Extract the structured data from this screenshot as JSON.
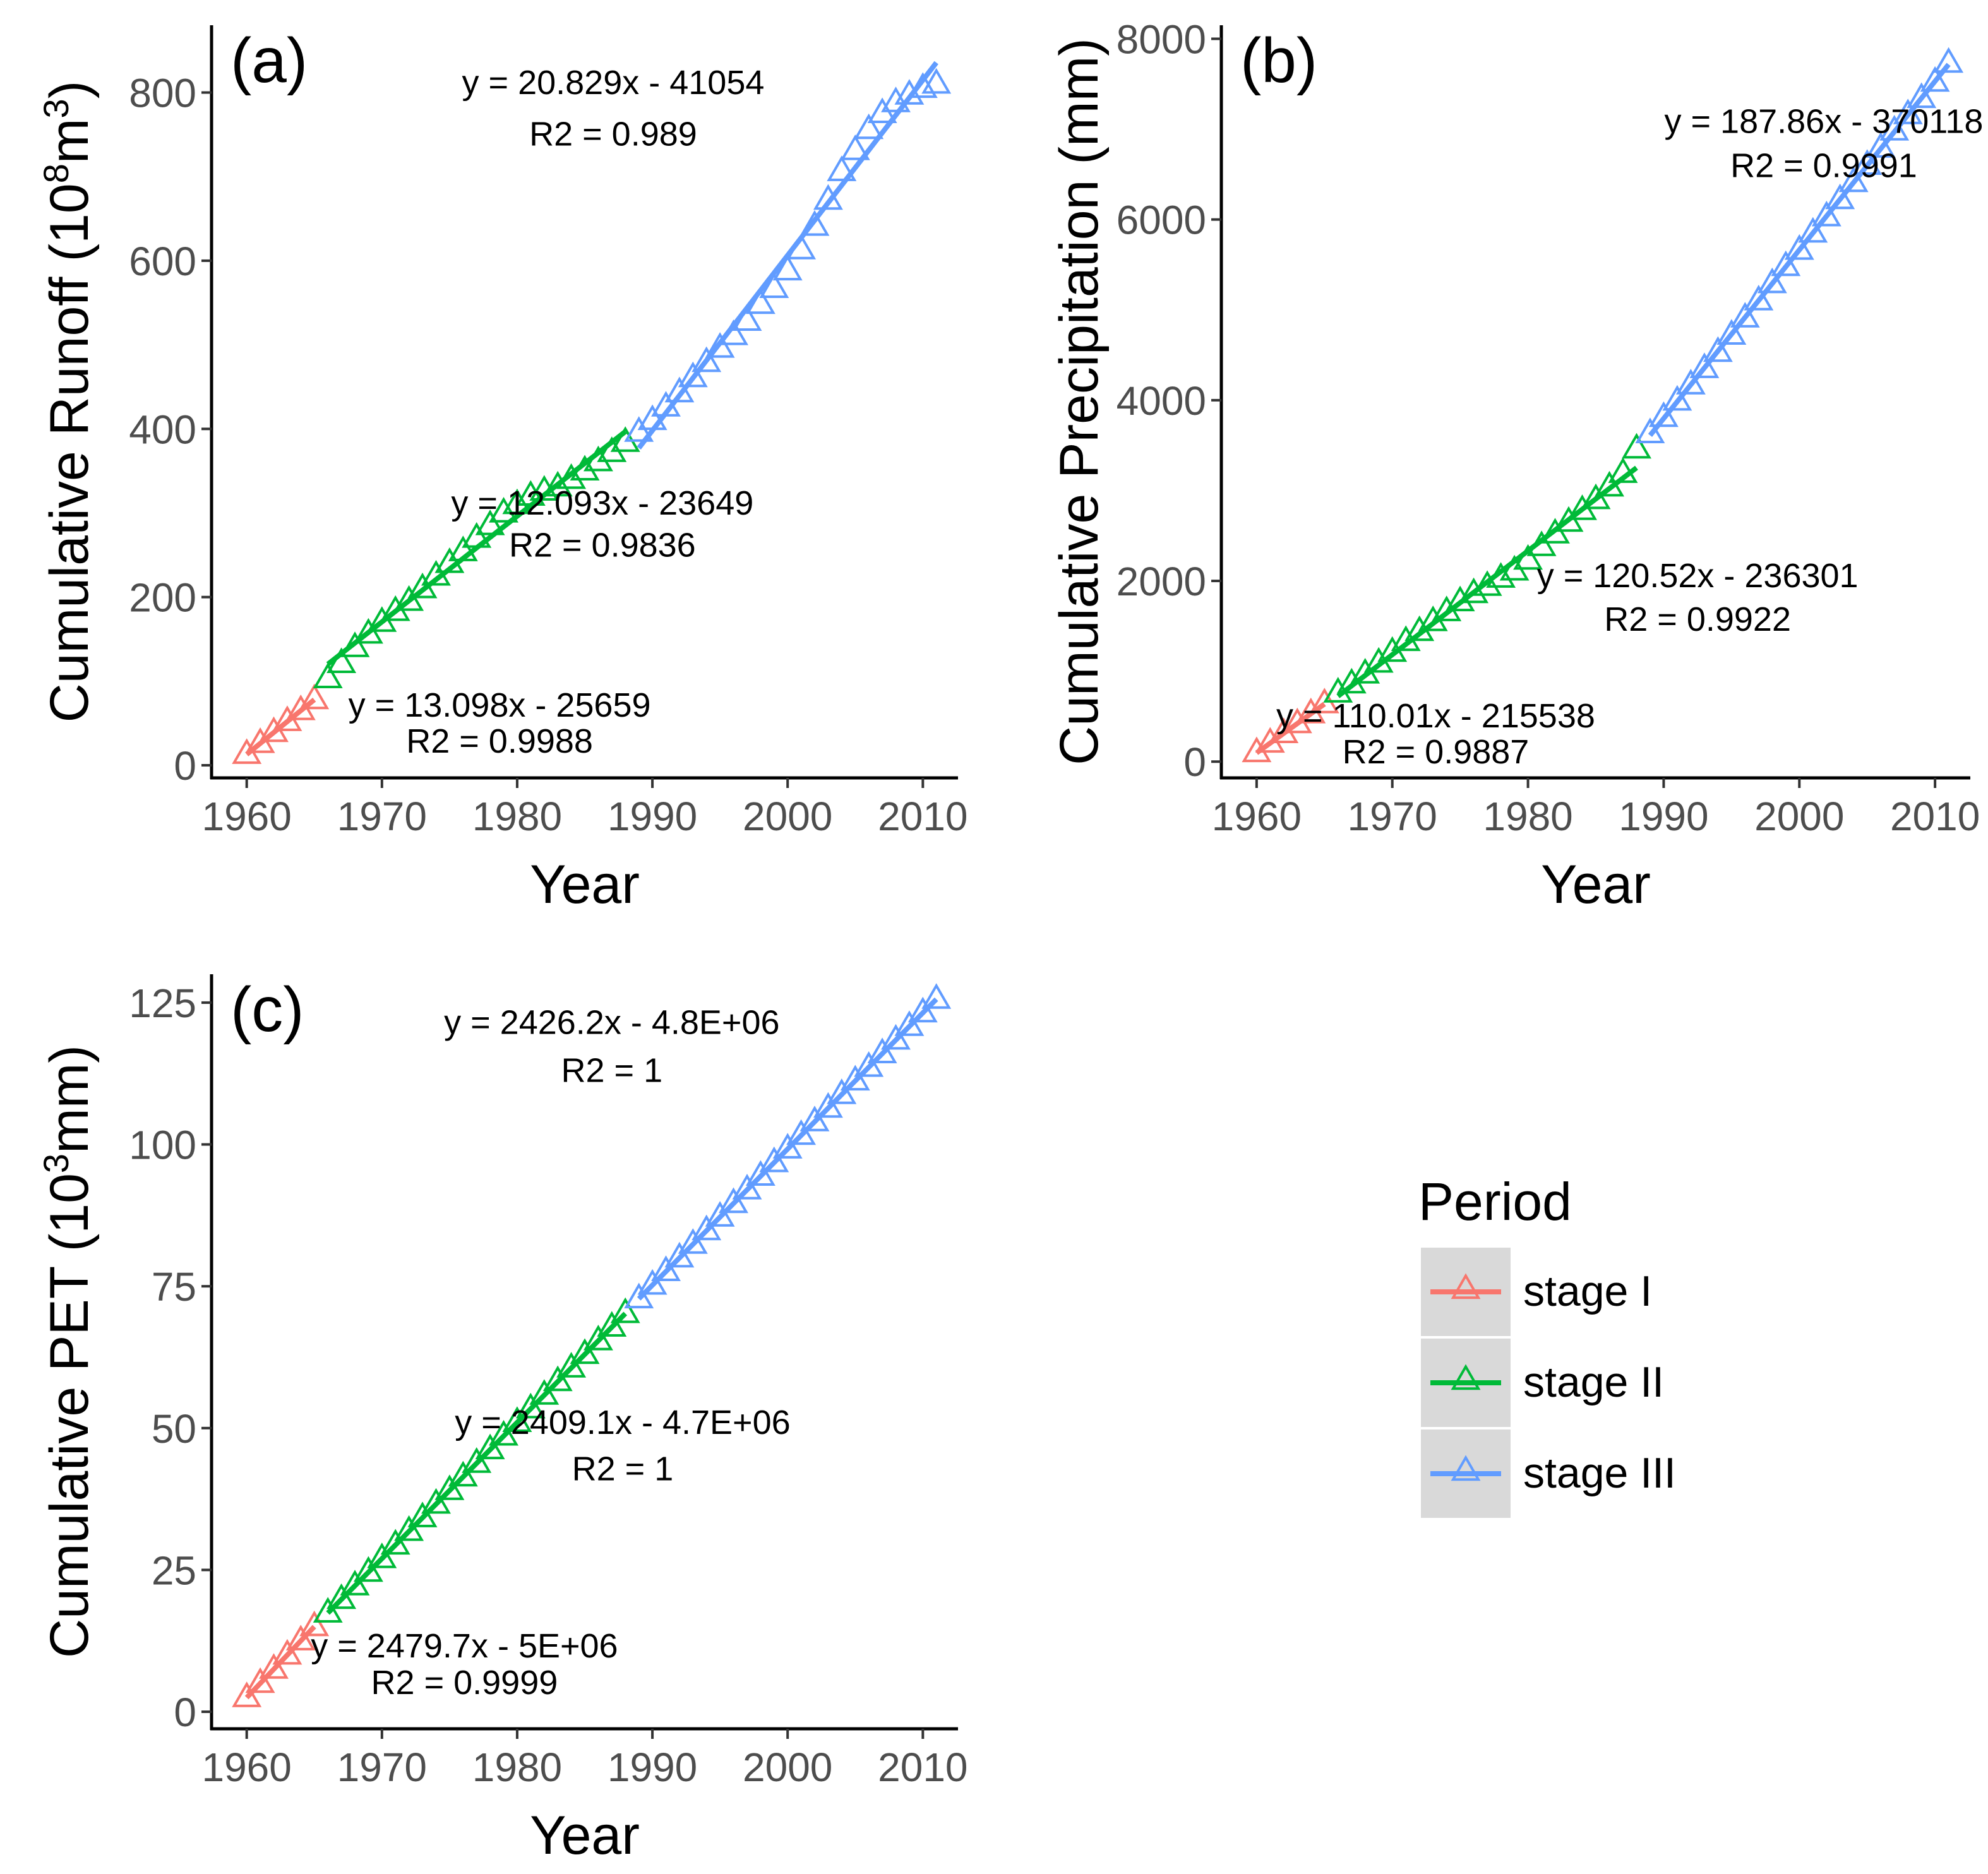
{
  "x_axis_title": "Year",
  "legend": {
    "title": "Period",
    "items": [
      {
        "label": "stage I",
        "color": "#F8766D"
      },
      {
        "label": "stage II",
        "color": "#00BA38"
      },
      {
        "label": "stage III",
        "color": "#619CFF"
      }
    ]
  },
  "chart_data": [
    {
      "type": "scatter",
      "panel_label": "(a)",
      "ylabel": {
        "main": "Cumulative Runoff (10",
        "sup1": "8",
        "mid": "m",
        "sup2": "3",
        "end": ")"
      },
      "xlim": [
        1957.4,
        2012.6
      ],
      "ylim": [
        -15,
        880
      ],
      "xticks": [
        1960,
        1970,
        1980,
        1990,
        2000,
        2010
      ],
      "yticks": [
        0,
        200,
        400,
        600,
        800
      ],
      "series": [
        {
          "name": "stage I",
          "x": [
            1960,
            1961,
            1962,
            1963,
            1964,
            1965
          ],
          "y": [
            13,
            26,
            39,
            52,
            65,
            78
          ]
        },
        {
          "name": "stage II",
          "x": [
            1966,
            1967,
            1968,
            1969,
            1970,
            1971,
            1972,
            1973,
            1974,
            1975,
            1976,
            1977,
            1978,
            1979,
            1980,
            1981,
            1982,
            1983,
            1984,
            1985,
            1986,
            1987,
            1988
          ],
          "y": [
            103,
            121,
            140,
            156,
            170,
            183,
            195,
            210,
            225,
            240,
            254,
            270,
            285,
            300,
            310,
            320,
            326,
            331,
            340,
            350,
            361,
            372,
            384
          ]
        },
        {
          "name": "stage III",
          "x": [
            1989,
            1990,
            1991,
            1992,
            1993,
            1994,
            1995,
            1996,
            1997,
            1998,
            1999,
            2000,
            2001,
            2002,
            2003,
            2004,
            2005,
            2006,
            2007,
            2008,
            2009,
            2010,
            2011
          ],
          "y": [
            396,
            410,
            426,
            443,
            461,
            479,
            496,
            511,
            528,
            548,
            567,
            588,
            613,
            641,
            672,
            706,
            731,
            756,
            775,
            788,
            797,
            805,
            810
          ]
        }
      ],
      "annotations": [
        {
          "lines": [
            "y = 20.829x - 41054",
            "R2 = 0.989"
          ],
          "x": 1987.1,
          "y": [
            798,
            737
          ]
        },
        {
          "lines": [
            "y = 12.093x - 23649",
            "R2 = 0.9836"
          ],
          "x": 1986.3,
          "y": [
            298,
            248
          ]
        },
        {
          "lines": [
            "y = 13.098x - 25659",
            "R2 = 0.9988"
          ],
          "x": 1978.7,
          "y": [
            58,
            15
          ]
        }
      ]
    },
    {
      "type": "scatter",
      "panel_label": "(b)",
      "ylabel": {
        "main": "Cumulative Precipitation (mm)"
      },
      "xlim": [
        1957.4,
        2012.6
      ],
      "ylim": [
        -180,
        8150
      ],
      "xticks": [
        1960,
        1970,
        1980,
        1990,
        2000,
        2010
      ],
      "yticks": [
        0,
        2000,
        4000,
        6000,
        8000
      ],
      "series": [
        {
          "name": "stage I",
          "x": [
            1960,
            1961,
            1962,
            1963,
            1964,
            1965
          ],
          "y": [
            100,
            205,
            310,
            420,
            530,
            640
          ]
        },
        {
          "name": "stage II",
          "x": [
            1966,
            1967,
            1968,
            1969,
            1970,
            1971,
            1972,
            1973,
            1974,
            1975,
            1976,
            1977,
            1978,
            1979,
            1980,
            1981,
            1982,
            1983,
            1984,
            1985,
            1986,
            1987,
            1988
          ],
          "y": [
            760,
            860,
            970,
            1090,
            1210,
            1330,
            1440,
            1550,
            1660,
            1770,
            1860,
            1940,
            2030,
            2110,
            2230,
            2380,
            2520,
            2650,
            2780,
            2900,
            3040,
            3190,
            3460
          ]
        },
        {
          "name": "stage III",
          "x": [
            1989,
            1990,
            1991,
            1992,
            1993,
            1994,
            1995,
            1996,
            1997,
            1998,
            1999,
            2000,
            2001,
            2002,
            2003,
            2004,
            2005,
            2006,
            2007,
            2008,
            2009,
            2010,
            2011
          ],
          "y": [
            3630,
            3810,
            3990,
            4170,
            4350,
            4530,
            4720,
            4910,
            5100,
            5290,
            5480,
            5660,
            5850,
            6030,
            6220,
            6410,
            6600,
            6790,
            6980,
            7160,
            7340,
            7520,
            7730
          ]
        }
      ],
      "annotations": [
        {
          "lines": [
            "y = 187.86x - 370118",
            "R2 = 0.9991"
          ],
          "x": 2001.8,
          "y": [
            6960,
            6470
          ]
        },
        {
          "lines": [
            "y = 120.52x - 236301",
            "R2 = 0.9922"
          ],
          "x": 1992.5,
          "y": [
            1930,
            1450
          ]
        },
        {
          "lines": [
            "y = 110.01x - 215538",
            "R2 = 0.9887"
          ],
          "x": 1973.2,
          "y": [
            380,
            -20
          ]
        }
      ]
    },
    {
      "type": "scatter",
      "panel_label": "(c)",
      "ylabel": {
        "main": "Cumulative PET (10",
        "sup1": "3",
        "mid": "mm)"
      },
      "xlim": [
        1957.4,
        2012.6
      ],
      "ylim": [
        -3,
        130
      ],
      "xticks": [
        1960,
        1970,
        1980,
        1990,
        2000,
        2010
      ],
      "yticks": [
        0,
        25,
        50,
        75,
        100,
        125
      ],
      "series": [
        {
          "name": "stage I",
          "x": [
            1960,
            1961,
            1962,
            1963,
            1964,
            1965
          ],
          "y": [
            2.5,
            5,
            7.5,
            10,
            12.5,
            15
          ]
        },
        {
          "name": "stage II",
          "x": [
            1966,
            1967,
            1968,
            1969,
            1970,
            1971,
            1972,
            1973,
            1974,
            1975,
            1976,
            1977,
            1978,
            1979,
            1980,
            1981,
            1982,
            1983,
            1984,
            1985,
            1986,
            1987,
            1988
          ],
          "y": [
            17.4,
            19.8,
            22.2,
            24.6,
            27,
            29.4,
            31.8,
            34.2,
            36.6,
            39,
            41.4,
            43.8,
            46.2,
            48.6,
            51,
            53.4,
            55.8,
            58.2,
            60.6,
            63,
            65.4,
            67.8,
            70.2
          ]
        },
        {
          "name": "stage III",
          "x": [
            1989,
            1990,
            1991,
            1992,
            1993,
            1994,
            1995,
            1996,
            1997,
            1998,
            1999,
            2000,
            2001,
            2002,
            2003,
            2004,
            2005,
            2006,
            2007,
            2008,
            2009,
            2010,
            2011
          ],
          "y": [
            72.8,
            75.2,
            77.6,
            80,
            82.4,
            84.8,
            87.2,
            89.6,
            92,
            94.4,
            96.8,
            99.2,
            101.6,
            104,
            106.4,
            108.8,
            111.2,
            113.6,
            116,
            118.4,
            120.8,
            123.2,
            125.6
          ]
        }
      ],
      "annotations": [
        {
          "lines": [
            "y = 2426.2x - 4.8E+06",
            "R2 = 1"
          ],
          "x": 1987,
          "y": [
            119.5,
            111
          ]
        },
        {
          "lines": [
            "y = 2409.1x - 4.7E+06",
            "R2 = 1"
          ],
          "x": 1987.8,
          "y": [
            49,
            40.8
          ]
        },
        {
          "lines": [
            "y = 2479.7x - 5E+06",
            "R2 = 0.9999"
          ],
          "x": 1976.1,
          "y": [
            9.6,
            3.1
          ]
        }
      ]
    }
  ]
}
